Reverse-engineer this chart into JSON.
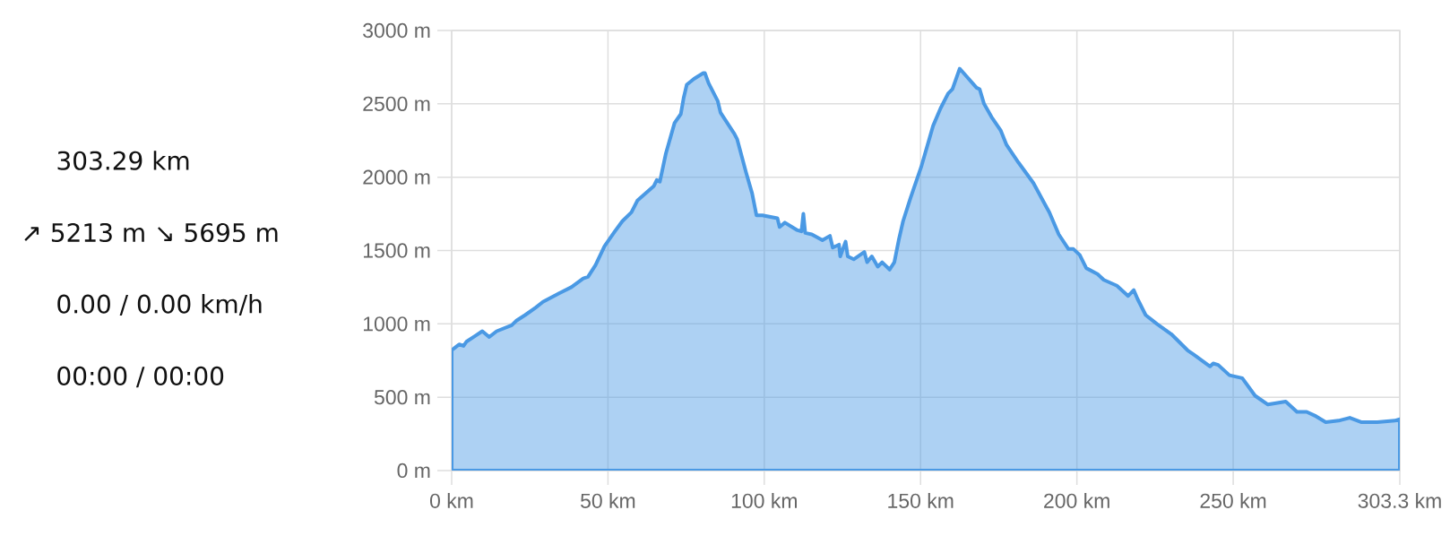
{
  "chart_data": {
    "type": "area",
    "x": [
      0,
      2.4,
      3.8,
      4.8,
      7.7,
      9.8,
      12.0,
      14.4,
      19.2,
      20.6,
      23.5,
      26.8,
      29.2,
      34.5,
      38.3,
      42.1,
      43.6,
      46.0,
      48.9,
      52.2,
      54.6,
      57.5,
      59.4,
      64.7,
      65.6,
      66.6,
      68.5,
      71.3,
      73.3,
      74.2,
      75.2,
      77.5,
      80.5,
      81.0,
      82.2,
      85.1,
      86.0,
      90.3,
      91.3,
      94.2,
      96.1,
      97.5,
      99.4,
      104.2,
      104.9,
      106.6,
      110.4,
      111.9,
      112.5,
      113.1,
      115.2,
      118.6,
      121.0,
      121.9,
      123.9,
      124.3,
      126.0,
      126.7,
      128.6,
      132.0,
      132.9,
      134.4,
      136.3,
      137.7,
      140.1,
      141.6,
      143.0,
      144.4,
      146.8,
      150.2,
      154.0,
      156.4,
      158.8,
      160.2,
      162.5,
      167.9,
      168.9,
      170.3,
      172.7,
      175.6,
      177.5,
      181.3,
      186.1,
      189.9,
      191.2,
      194.2,
      197.3,
      198.9,
      200.9,
      203.0,
      206.6,
      208.6,
      212.8,
      216.4,
      218.2,
      219.4,
      222.0,
      225.6,
      230.2,
      235.4,
      237.4,
      242.6,
      243.6,
      245.2,
      248.8,
      252.9,
      257.0,
      261.1,
      266.8,
      270.4,
      273.5,
      276.5,
      279.6,
      283.7,
      287.3,
      290.9,
      296.1,
      301.7,
      303.3
    ],
    "values": [
      820,
      860,
      850,
      880,
      920,
      950,
      910,
      950,
      990,
      1020,
      1060,
      1110,
      1150,
      1210,
      1250,
      1310,
      1320,
      1400,
      1530,
      1630,
      1700,
      1760,
      1840,
      1940,
      1980,
      1970,
      2160,
      2370,
      2430,
      2540,
      2630,
      2670,
      2710,
      2710,
      2640,
      2520,
      2440,
      2300,
      2260,
      2030,
      1890,
      1740,
      1740,
      1720,
      1660,
      1690,
      1640,
      1630,
      1750,
      1620,
      1610,
      1570,
      1600,
      1520,
      1540,
      1460,
      1560,
      1460,
      1440,
      1490,
      1420,
      1460,
      1390,
      1420,
      1370,
      1420,
      1570,
      1700,
      1860,
      2070,
      2350,
      2470,
      2570,
      2600,
      2740,
      2610,
      2600,
      2500,
      2410,
      2320,
      2220,
      2100,
      1960,
      1810,
      1760,
      1610,
      1510,
      1510,
      1470,
      1380,
      1340,
      1300,
      1260,
      1190,
      1230,
      1170,
      1060,
      1000,
      930,
      820,
      790,
      710,
      730,
      720,
      650,
      630,
      510,
      450,
      470,
      400,
      400,
      370,
      330,
      340,
      360,
      330,
      330,
      340,
      350
    ],
    "color": "#4a99e4",
    "xlim": [
      0,
      303.3
    ],
    "xticks": [
      {
        "value": 0,
        "label": "0 km"
      },
      {
        "value": 50,
        "label": "50 km"
      },
      {
        "value": 100,
        "label": "100 km"
      },
      {
        "value": 150,
        "label": "150 km"
      },
      {
        "value": 200,
        "label": "200 km"
      },
      {
        "value": 250,
        "label": "250 km"
      },
      {
        "value": 303.3,
        "label": "303.3 km"
      }
    ],
    "ylim": [
      0,
      3000
    ],
    "yticks": [
      {
        "value": 0,
        "label": "0 m"
      },
      {
        "value": 500,
        "label": "500 m"
      },
      {
        "value": 1000,
        "label": "1000 m"
      },
      {
        "value": 1500,
        "label": "1500 m"
      },
      {
        "value": 2000,
        "label": "2000 m"
      },
      {
        "value": 2500,
        "label": "2500 m"
      },
      {
        "value": 3000,
        "label": "3000 m"
      }
    ],
    "grid": true,
    "annotations": [
      "303.29 km",
      "↗ 5213 m ↘ 5695 m",
      "0.00 / 0.00 km/h",
      "00:00 / 00:00"
    ]
  }
}
